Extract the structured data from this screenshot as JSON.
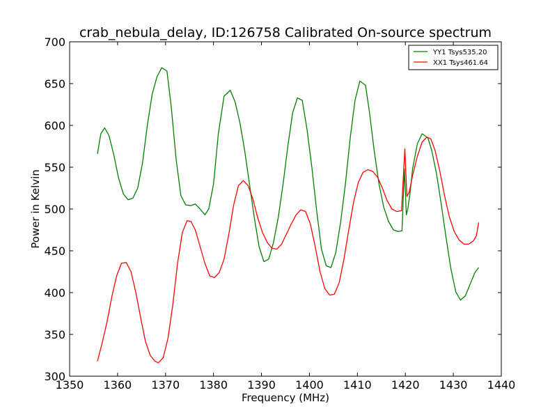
{
  "chart_data": {
    "type": "line",
    "title": "crab_nebula_delay, ID:126758 Calibrated On-source spectrum",
    "xlabel": "Frequency (MHz)",
    "ylabel": "Power in Kelvin",
    "xlim": [
      1350,
      1440
    ],
    "ylim": [
      300,
      700
    ],
    "xticks": [
      1350,
      1360,
      1370,
      1380,
      1390,
      1400,
      1410,
      1420,
      1430,
      1440
    ],
    "yticks": [
      300,
      350,
      400,
      450,
      500,
      550,
      600,
      650,
      700
    ],
    "grid": false,
    "legend_position": "top-right",
    "series": [
      {
        "name": "YY1 Tsys535.20",
        "color": "#008000",
        "x": [
          1355.8,
          1356.5,
          1357.3,
          1358.2,
          1359.2,
          1360.2,
          1361.2,
          1362.2,
          1363.2,
          1364.2,
          1365.2,
          1366.2,
          1367.2,
          1368.2,
          1369.2,
          1370.3,
          1371.2,
          1372.2,
          1373.2,
          1374.2,
          1375.2,
          1376.2,
          1377.2,
          1378.2,
          1379.0,
          1380.0,
          1381.0,
          1382.2,
          1383.5,
          1384.5,
          1385.5,
          1386.5,
          1387.5,
          1388.5,
          1389.5,
          1390.5,
          1391.5,
          1392.5,
          1393.5,
          1394.5,
          1395.5,
          1396.5,
          1397.5,
          1398.5,
          1399.5,
          1400.5,
          1401.5,
          1402.5,
          1403.5,
          1404.5,
          1405.5,
          1406.5,
          1407.5,
          1408.5,
          1409.5,
          1410.5,
          1411.7,
          1412.5,
          1413.5,
          1414.5,
          1415.5,
          1416.5,
          1417.5,
          1418.5,
          1419.3,
          1419.8,
          1420.2,
          1420.5,
          1421.0,
          1421.5,
          1422.5,
          1423.5,
          1424.7,
          1425.5,
          1426.5,
          1427.5,
          1428.5,
          1429.5,
          1430.5,
          1431.5,
          1432.5,
          1433.5,
          1434.5,
          1435.3
        ],
        "values": [
          566,
          590,
          597,
          588,
          565,
          537,
          518,
          511,
          513,
          525,
          555,
          600,
          637,
          658,
          669,
          665,
          622,
          560,
          516,
          505,
          504,
          506,
          500,
          493,
          500,
          530,
          590,
          635,
          642,
          628,
          603,
          570,
          530,
          490,
          455,
          437,
          440,
          460,
          490,
          530,
          575,
          615,
          633,
          630,
          595,
          550,
          498,
          452,
          432,
          430,
          448,
          484,
          530,
          585,
          630,
          653,
          648,
          616,
          570,
          530,
          502,
          485,
          475,
          473,
          474,
          548,
          493,
          500,
          520,
          548,
          578,
          590,
          585,
          570,
          542,
          505,
          465,
          428,
          401,
          391,
          396,
          410,
          424,
          430
        ]
      },
      {
        "name": "XX1 Tsys461.64",
        "color": "#ff0000",
        "x": [
          1355.8,
          1356.8,
          1357.8,
          1358.8,
          1359.8,
          1360.8,
          1361.8,
          1362.8,
          1363.8,
          1364.8,
          1365.8,
          1366.8,
          1367.8,
          1368.5,
          1369.5,
          1370.5,
          1371.5,
          1372.5,
          1373.5,
          1374.5,
          1375.3,
          1376.2,
          1377.2,
          1378.2,
          1379.2,
          1380.2,
          1381.2,
          1382.2,
          1383.2,
          1384.2,
          1385.2,
          1386.2,
          1387.2,
          1388.2,
          1389.2,
          1390.2,
          1391.2,
          1392.2,
          1393.2,
          1394.2,
          1395.2,
          1396.2,
          1397.2,
          1398.2,
          1399.2,
          1400.2,
          1401.2,
          1402.2,
          1403.2,
          1404.2,
          1405.2,
          1406.2,
          1407.2,
          1408.2,
          1409.2,
          1410.2,
          1411.2,
          1412.2,
          1413.2,
          1414.2,
          1415.2,
          1416.2,
          1417.2,
          1418.2,
          1419.2,
          1419.9,
          1420.3,
          1420.8,
          1421.5,
          1422.5,
          1423.5,
          1424.5,
          1425.3,
          1426.2,
          1427.2,
          1428.2,
          1429.2,
          1430.2,
          1431.2,
          1432.2,
          1433.2,
          1434.2,
          1434.8,
          1435.3
        ],
        "values": [
          318,
          340,
          365,
          395,
          420,
          435,
          436,
          425,
          400,
          370,
          342,
          325,
          318,
          316,
          322,
          345,
          385,
          435,
          472,
          486,
          485,
          475,
          455,
          435,
          420,
          418,
          424,
          440,
          470,
          505,
          528,
          534,
          528,
          512,
          490,
          472,
          460,
          453,
          452,
          458,
          470,
          482,
          493,
          499,
          497,
          482,
          455,
          425,
          405,
          397,
          398,
          412,
          440,
          475,
          508,
          532,
          544,
          547,
          545,
          538,
          525,
          510,
          500,
          497,
          498,
          572,
          515,
          520,
          540,
          563,
          580,
          586,
          584,
          570,
          545,
          515,
          490,
          473,
          463,
          458,
          458,
          462,
          468,
          484
        ]
      }
    ]
  }
}
